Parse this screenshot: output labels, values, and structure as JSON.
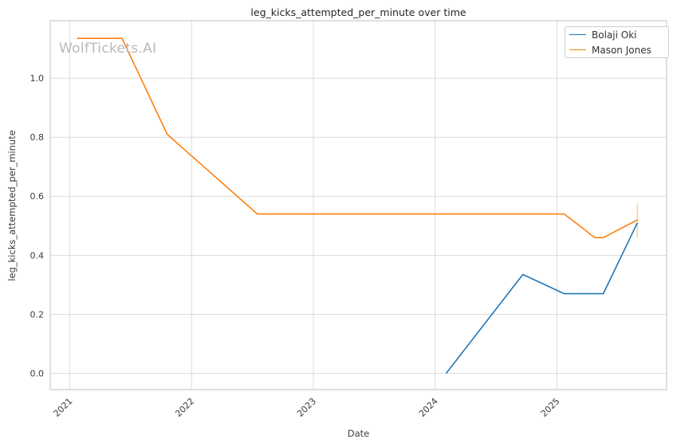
{
  "watermark": "WolfTickets.AI",
  "chart_data": {
    "type": "line",
    "title": "leg_kicks_attempted_per_minute over time",
    "xlabel": "Date",
    "ylabel": "leg_kicks_attempted_per_minute",
    "xlim": [
      2020.84,
      2025.9
    ],
    "ylim": [
      -0.055,
      1.195
    ],
    "grid": true,
    "legend_position": "upper right",
    "xticks": {
      "values": [
        2021,
        2022,
        2023,
        2024,
        2025
      ],
      "labels": [
        "2021",
        "2022",
        "2023",
        "2024",
        "2025"
      ],
      "rotation": 45
    },
    "yticks": {
      "values": [
        0.0,
        0.2,
        0.4,
        0.6,
        0.8,
        1.0
      ],
      "labels": [
        "0.0",
        "0.2",
        "0.4",
        "0.6",
        "0.8",
        "1.0"
      ]
    },
    "series": [
      {
        "name": "Bolaji Oki",
        "color": "#1f77b4",
        "x": [
          2024.09,
          2024.72,
          2025.06,
          2025.38,
          2025.66
        ],
        "y": [
          0.0,
          0.335,
          0.27,
          0.27,
          0.51
        ]
      },
      {
        "name": "Mason Jones",
        "color": "#ff7f0e",
        "x": [
          2021.06,
          2021.43,
          2021.8,
          2022.54,
          2025.06,
          2025.31,
          2025.38,
          2025.66
        ],
        "y": [
          1.135,
          1.135,
          0.81,
          0.54,
          0.54,
          0.46,
          0.46,
          0.52
        ]
      }
    ],
    "error_bar": {
      "series": "Mason Jones",
      "x": 2025.66,
      "y_low": 0.46,
      "y_high": 0.575,
      "color": "#ffcd9c"
    }
  }
}
